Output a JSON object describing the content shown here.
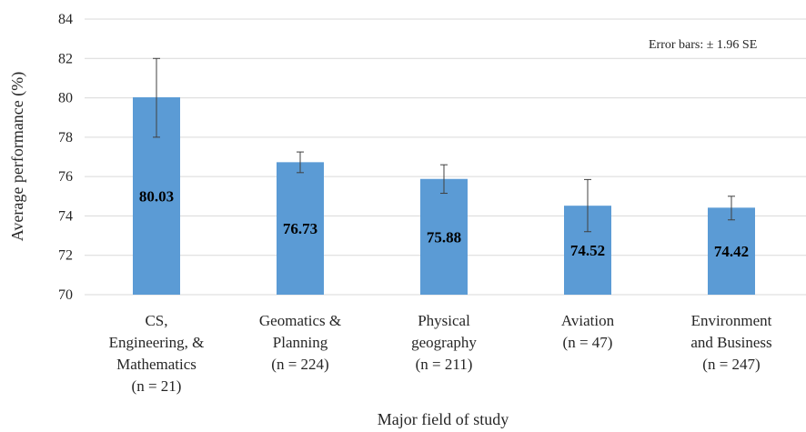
{
  "chart_data": {
    "type": "bar",
    "title": "",
    "xlabel": "Major field of study",
    "ylabel": "Average performance (%)",
    "ylim": [
      70,
      84
    ],
    "yticks": [
      70,
      72,
      74,
      76,
      78,
      80,
      82,
      84
    ],
    "grid": "horizontal",
    "annotation": "Error bars: ± 1.96 SE",
    "categories": [
      [
        "CS,",
        "Engineering, &",
        "Mathematics",
        "(n = 21)"
      ],
      [
        "Geomatics &",
        "Planning",
        "(n = 224)"
      ],
      [
        "Physical",
        "geography",
        "(n = 211)"
      ],
      [
        "Aviation",
        "(n = 47)"
      ],
      [
        "Environment",
        "and Business",
        "(n = 247)"
      ]
    ],
    "values": [
      80.03,
      76.73,
      75.88,
      74.52,
      74.42
    ],
    "value_labels": [
      "80.03",
      "76.73",
      "75.88",
      "74.52",
      "74.42"
    ],
    "error_low": [
      78.0,
      76.2,
      75.15,
      73.2,
      73.8
    ],
    "error_high": [
      82.0,
      77.25,
      76.6,
      75.85,
      75.0
    ],
    "bar_color": "#5B9BD5",
    "grid_color": "#D9D9D9",
    "error_color": "#404040"
  }
}
